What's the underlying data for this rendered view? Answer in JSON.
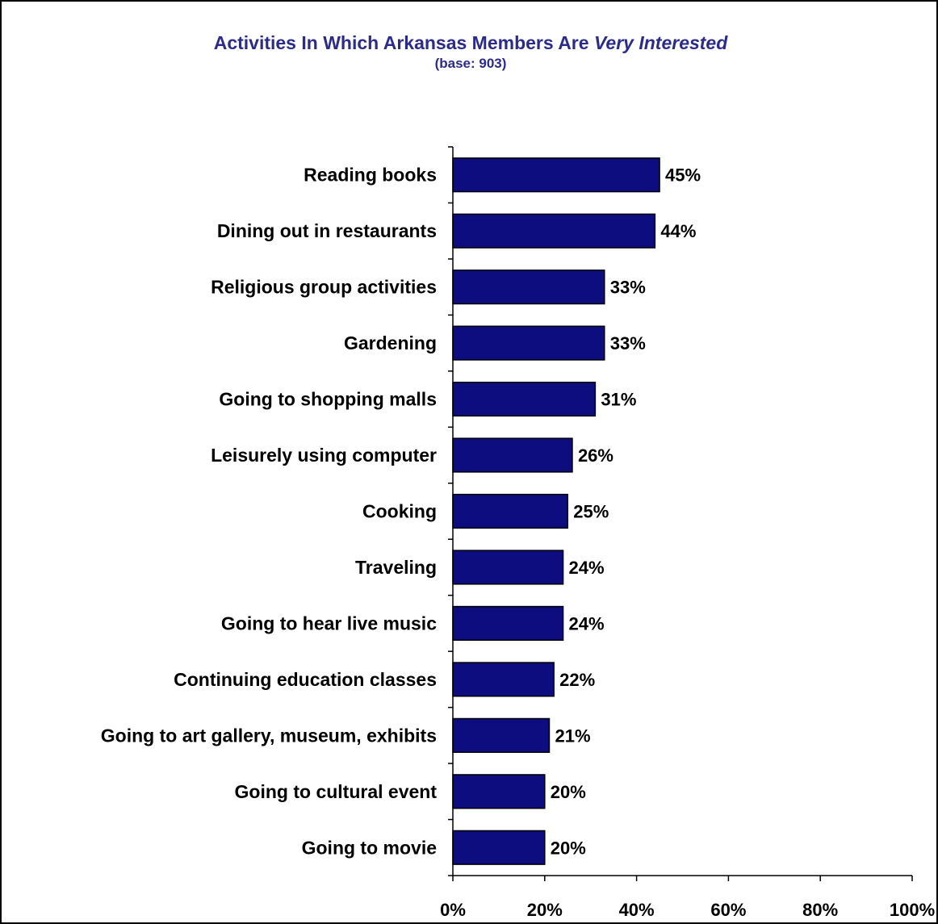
{
  "chart_data": {
    "type": "bar",
    "orientation": "horizontal",
    "title_prefix": "Activities In Which Arkansas Members Are",
    "title_emphasis": "Very Interested",
    "subtitle": "(base:  903)",
    "categories": [
      "Reading books",
      "Dining out in restaurants",
      "Religious group activities",
      "Gardening",
      "Going to shopping malls",
      "Leisurely using computer",
      "Cooking",
      "Traveling",
      "Going to hear live music",
      "Continuing education classes",
      "Going to art gallery, museum, exhibits",
      "Going to cultural event",
      "Going to movie"
    ],
    "values": [
      45,
      44,
      33,
      33,
      31,
      26,
      25,
      24,
      24,
      22,
      21,
      20,
      20
    ],
    "value_labels": [
      "45%",
      "44%",
      "33%",
      "33%",
      "31%",
      "26%",
      "25%",
      "24%",
      "24%",
      "22%",
      "21%",
      "20%",
      "20%"
    ],
    "xlim": [
      0,
      100
    ],
    "x_ticks": [
      0,
      20,
      40,
      60,
      80,
      100
    ],
    "x_tick_labels": [
      "0%",
      "20%",
      "40%",
      "60%",
      "80%",
      "100%"
    ],
    "grid": false,
    "legend": "none",
    "bar_color": "#0d0d80",
    "title_color": "#2b2b8c"
  }
}
